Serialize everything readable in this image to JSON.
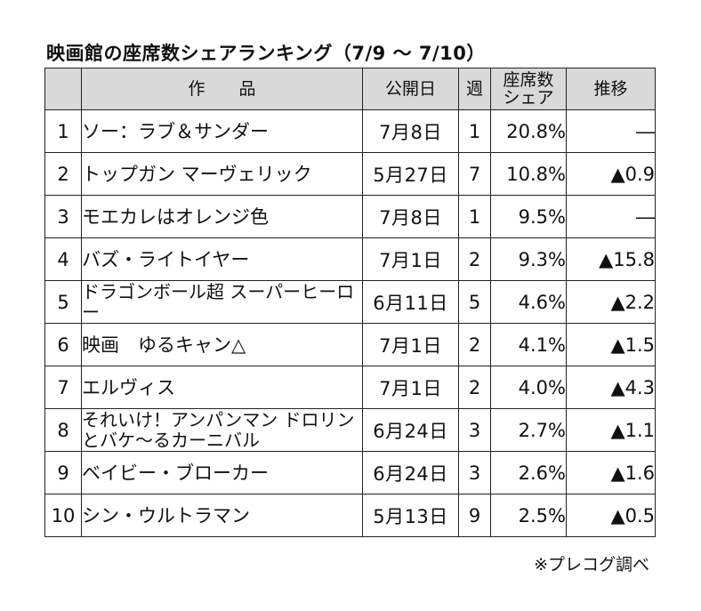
{
  "title": "映画館の座席数シェアランキング（7/9 ～ 7/10）",
  "headers": {
    "rank": "",
    "title": "作　　品",
    "release": "公開日",
    "weeks": "週",
    "share": "座席数\nシェア",
    "change": "推移"
  },
  "rows": [
    {
      "rank": "1",
      "title": "ソー：ラブ＆サンダー",
      "release": "7月8日",
      "weeks": "1",
      "share": "20.8%",
      "change": "―"
    },
    {
      "rank": "2",
      "title": "トップガン マーヴェリック",
      "release": "5月27日",
      "weeks": "7",
      "share": "10.8%",
      "change": "▲0.9"
    },
    {
      "rank": "3",
      "title": "モエカレはオレンジ色",
      "release": "7月8日",
      "weeks": "1",
      "share": "9.5%",
      "change": "―"
    },
    {
      "rank": "4",
      "title": "バズ・ライトイヤー",
      "release": "7月1日",
      "weeks": "2",
      "share": "9.3%",
      "change": "▲15.8"
    },
    {
      "rank": "5",
      "title": "ドラゴンボール超 スーパーヒーロー",
      "release": "6月11日",
      "weeks": "5",
      "share": "4.6%",
      "change": "▲2.2"
    },
    {
      "rank": "6",
      "title": "映画　ゆるキャン△",
      "release": "7月1日",
      "weeks": "2",
      "share": "4.1%",
      "change": "▲1.5"
    },
    {
      "rank": "7",
      "title": "エルヴィス",
      "release": "7月1日",
      "weeks": "2",
      "share": "4.0%",
      "change": "▲4.3"
    },
    {
      "rank": "8",
      "title": "それいけ！アンパンマン ドロリンとバケ～るカーニバル",
      "release": "6月24日",
      "weeks": "3",
      "share": "2.7%",
      "change": "▲1.1"
    },
    {
      "rank": "9",
      "title": "ベイビー・ブローカー",
      "release": "6月24日",
      "weeks": "3",
      "share": "2.6%",
      "change": "▲1.6"
    },
    {
      "rank": "10",
      "title": "シン・ウルトラマン",
      "release": "5月13日",
      "weeks": "9",
      "share": "2.5%",
      "change": "▲0.5"
    }
  ],
  "note": "※プレコグ調べ"
}
